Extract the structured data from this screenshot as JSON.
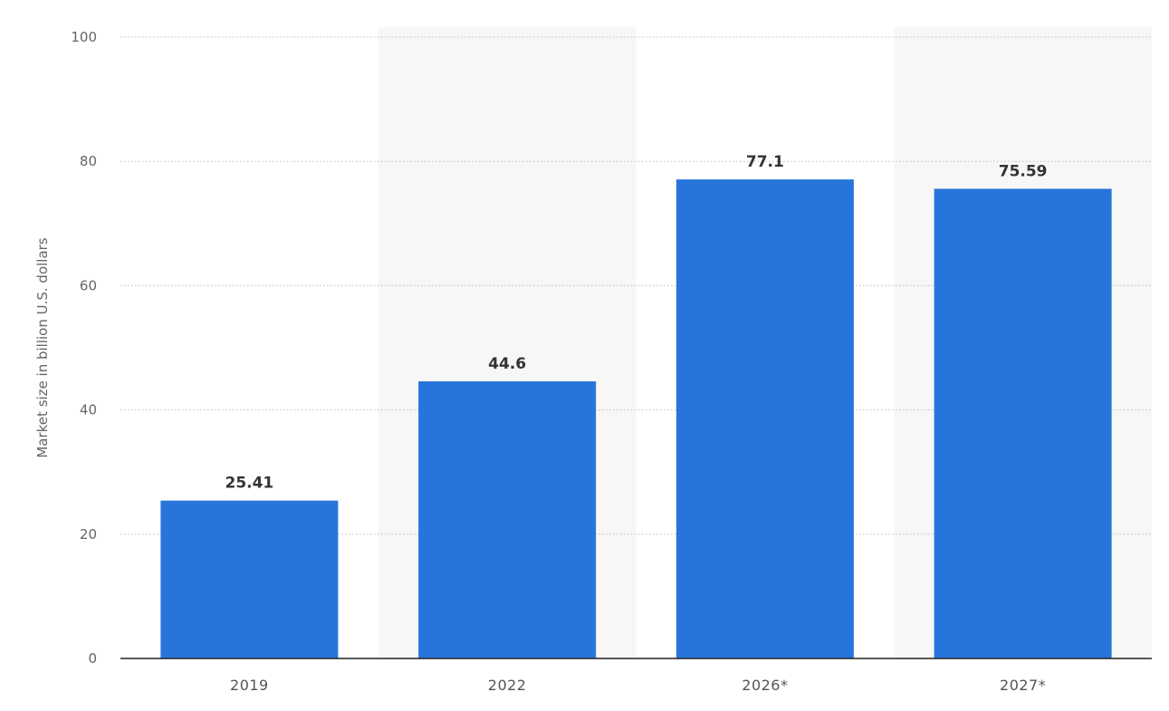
{
  "chart_data": {
    "type": "bar",
    "title": "",
    "xlabel": "",
    "ylabel": "Market size in billion U.S. dollars",
    "categories": [
      "2019",
      "2022",
      "2026*",
      "2027*"
    ],
    "series": [
      {
        "values": [
          25.41,
          44.6,
          77.1,
          75.59
        ]
      }
    ],
    "data_labels": [
      "25.41",
      "44.6",
      "77.1",
      "75.59"
    ],
    "ylim": [
      0,
      100
    ],
    "yticks": [
      0,
      20,
      40,
      60,
      80,
      100
    ],
    "ytick_labels": [
      "0",
      "20",
      "40",
      "60",
      "80",
      "100"
    ],
    "grid": true,
    "legend": "none",
    "colors": {
      "bar": "#2775db",
      "band": "#f7f7f7",
      "grid": "#bdbdbd",
      "axis": "#222222"
    }
  }
}
